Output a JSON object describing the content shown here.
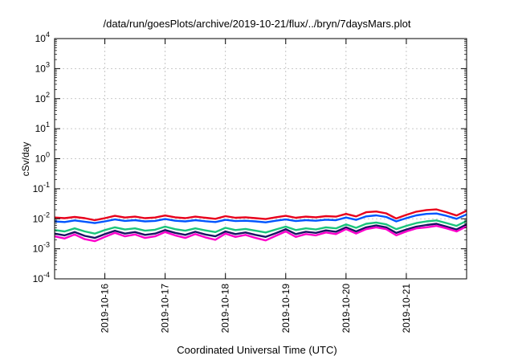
{
  "chart_data": {
    "type": "line",
    "title": "/data/run/goesPlots/archive/2019-10-21/flux/../bryn/7daysMars.plot",
    "xlabel": "Coordinated Universal Time (UTC)",
    "ylabel": "cSv/day",
    "yscale": "log",
    "ylim": [
      0.0001,
      10000
    ],
    "y_ticks": [
      {
        "base": "10",
        "exp": "4"
      },
      {
        "base": "10",
        "exp": "3"
      },
      {
        "base": "10",
        "exp": "2"
      },
      {
        "base": "10",
        "exp": "1"
      },
      {
        "base": "10",
        "exp": "0"
      },
      {
        "base": "10",
        "exp": "-1"
      },
      {
        "base": "10",
        "exp": "-2"
      },
      {
        "base": "10",
        "exp": "-3"
      },
      {
        "base": "10",
        "exp": "-4"
      }
    ],
    "x_ticks": [
      "2019-10-16",
      "2019-10-17",
      "2019-10-18",
      "2019-10-19",
      "2019-10-20",
      "2019-10-21"
    ],
    "xlim": [
      "2019-10-15T04:00",
      "2019-10-22T00:00"
    ],
    "grid": true,
    "x": [
      "2019-10-15T04:00",
      "2019-10-15T08:00",
      "2019-10-15T12:00",
      "2019-10-15T16:00",
      "2019-10-15T20:00",
      "2019-10-16T00:00",
      "2019-10-16T04:00",
      "2019-10-16T08:00",
      "2019-10-16T12:00",
      "2019-10-16T16:00",
      "2019-10-16T20:00",
      "2019-10-17T00:00",
      "2019-10-17T04:00",
      "2019-10-17T08:00",
      "2019-10-17T12:00",
      "2019-10-17T16:00",
      "2019-10-17T20:00",
      "2019-10-18T00:00",
      "2019-10-18T04:00",
      "2019-10-18T08:00",
      "2019-10-18T12:00",
      "2019-10-18T16:00",
      "2019-10-18T20:00",
      "2019-10-19T00:00",
      "2019-10-19T04:00",
      "2019-10-19T08:00",
      "2019-10-19T12:00",
      "2019-10-19T16:00",
      "2019-10-19T20:00",
      "2019-10-20T00:00",
      "2019-10-20T04:00",
      "2019-10-20T08:00",
      "2019-10-20T12:00",
      "2019-10-20T16:00",
      "2019-10-20T20:00",
      "2019-10-21T00:00",
      "2019-10-21T04:00",
      "2019-10-21T08:00",
      "2019-10-21T12:00",
      "2019-10-21T16:00",
      "2019-10-21T20:00",
      "2019-10-22T00:00"
    ],
    "series": [
      {
        "color": "#e8001c",
        "values": [
          0.011,
          0.0105,
          0.0115,
          0.0105,
          0.009,
          0.0105,
          0.0125,
          0.011,
          0.0118,
          0.0105,
          0.011,
          0.0128,
          0.0112,
          0.0105,
          0.0118,
          0.0108,
          0.01,
          0.0122,
          0.0108,
          0.0112,
          0.0105,
          0.0098,
          0.0112,
          0.0125,
          0.0108,
          0.0118,
          0.0112,
          0.0122,
          0.0118,
          0.0145,
          0.012,
          0.0165,
          0.0175,
          0.0152,
          0.0102,
          0.0135,
          0.0172,
          0.0195,
          0.0205,
          0.0165,
          0.0128,
          0.0185
        ]
      },
      {
        "color": "#0055ff",
        "values": [
          0.0082,
          0.0078,
          0.0088,
          0.008,
          0.0072,
          0.0082,
          0.0095,
          0.0085,
          0.009,
          0.0082,
          0.0085,
          0.0098,
          0.0086,
          0.0082,
          0.009,
          0.0083,
          0.0078,
          0.0092,
          0.0084,
          0.0086,
          0.0082,
          0.0076,
          0.0086,
          0.0095,
          0.0084,
          0.009,
          0.0086,
          0.0093,
          0.009,
          0.011,
          0.0092,
          0.012,
          0.013,
          0.0115,
          0.0082,
          0.0105,
          0.013,
          0.0145,
          0.015,
          0.0125,
          0.01,
          0.014
        ]
      },
      {
        "color": "#1ac47a",
        "values": [
          0.0042,
          0.0038,
          0.0048,
          0.0038,
          0.0032,
          0.0042,
          0.0052,
          0.0044,
          0.0048,
          0.004,
          0.0043,
          0.0055,
          0.0045,
          0.004,
          0.0048,
          0.0041,
          0.0036,
          0.005,
          0.0042,
          0.0046,
          0.004,
          0.0035,
          0.0044,
          0.0055,
          0.0042,
          0.0048,
          0.0044,
          0.0052,
          0.0048,
          0.0065,
          0.005,
          0.0068,
          0.0075,
          0.0065,
          0.0045,
          0.0058,
          0.0072,
          0.0082,
          0.0088,
          0.0072,
          0.0058,
          0.0085
        ]
      },
      {
        "color": "#1b1464",
        "values": [
          0.0032,
          0.0028,
          0.0036,
          0.0027,
          0.0023,
          0.0031,
          0.004,
          0.0032,
          0.0036,
          0.0029,
          0.0032,
          0.0042,
          0.0034,
          0.0029,
          0.0037,
          0.003,
          0.0026,
          0.0038,
          0.0031,
          0.0035,
          0.0029,
          0.0025,
          0.0033,
          0.0045,
          0.0031,
          0.0037,
          0.0034,
          0.0041,
          0.0037,
          0.0052,
          0.0038,
          0.0052,
          0.006,
          0.0052,
          0.0034,
          0.0044,
          0.0055,
          0.0062,
          0.0068,
          0.0055,
          0.0044,
          0.0065
        ]
      },
      {
        "color": "#ff00cc",
        "values": [
          0.0026,
          0.0022,
          0.003,
          0.0021,
          0.0018,
          0.0025,
          0.0034,
          0.0026,
          0.003,
          0.0023,
          0.0026,
          0.0036,
          0.0028,
          0.0023,
          0.0031,
          0.0024,
          0.002,
          0.0032,
          0.0025,
          0.0029,
          0.0023,
          0.0019,
          0.0027,
          0.0038,
          0.0025,
          0.0031,
          0.0028,
          0.0035,
          0.0031,
          0.0045,
          0.0032,
          0.0045,
          0.0052,
          0.0045,
          0.0028,
          0.0038,
          0.0048,
          0.0052,
          0.0058,
          0.0048,
          0.0038,
          0.0056
        ]
      }
    ]
  }
}
